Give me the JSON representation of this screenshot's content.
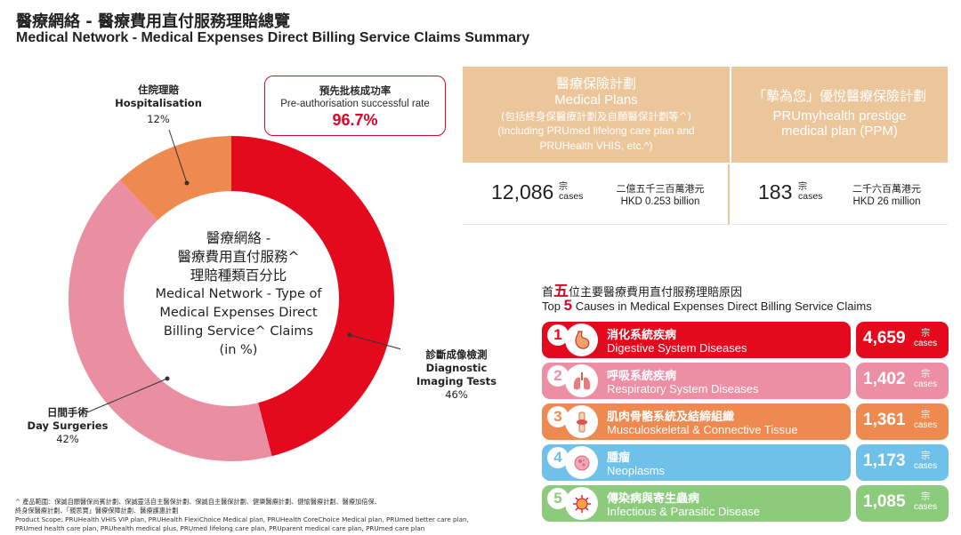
{
  "header": {
    "title_zh": "醫療網絡 - 醫療費用直付服務理賠總覽",
    "title_en": "Medical Network - Medical Expenses Direct Billing Service Claims Summary"
  },
  "chart_data": {
    "type": "pie",
    "donut": true,
    "title": "醫療網絡 - 醫療費用直付服務^ 理賠種類百分比 Medical Network - Type of Medical Expenses Direct Billing Service^ Claims (in %)",
    "title_lines": [
      "醫療網絡 -",
      "醫療費用直付服務^",
      "理賠種類百分比",
      "Medical Network - Type of",
      "Medical Expenses Direct",
      "Billing Service^ Claims",
      "(in %)"
    ],
    "slices": [
      {
        "label_zh": "診斷成像檢測",
        "label_en": "Diagnostic Imaging Tests",
        "label_en_lines": [
          "Diagnostic",
          "Imaging Tests"
        ],
        "value": 46,
        "value_label": "46%",
        "color": "#e5091e"
      },
      {
        "label_zh": "日間手術",
        "label_en": "Day Surgeries",
        "value": 42,
        "value_label": "42%",
        "color": "#ea8ea2"
      },
      {
        "label_zh": "住院理賠",
        "label_en": "Hospitalisation",
        "value": 12,
        "value_label": "12%",
        "color": "#ee8a4f"
      }
    ]
  },
  "preauth": {
    "label_zh": "預先批核成功率",
    "label_en": "Pre-authorisation successful rate",
    "value": "96.7%"
  },
  "plans": [
    {
      "name_zh": "醫療保險計劃",
      "name_en": "Medical Plans",
      "note_zh": "(包括終身保醫療計劃及自願醫保計劃等^)",
      "note_en_lines": [
        "(Including PRUmed lifelong care plan and",
        "PRUHealth VHIS, etc.^)"
      ],
      "cases": "12,086",
      "cases_unit_zh": "宗",
      "cases_unit_en": "cases",
      "amount_zh": "二億五千三百萬港元",
      "amount_en": "HKD 0.253 billion"
    },
    {
      "name_zh": "「摯為您」優悅醫療保險計劃",
      "name_en_lines": [
        "PRUmyhealth prestige",
        "medical plan (PPM)"
      ],
      "cases": "183",
      "cases_unit_zh": "宗",
      "cases_unit_en": "cases",
      "amount_zh": "二千六百萬港元",
      "amount_en": "HKD 26 million"
    }
  ],
  "causes": {
    "title_zh_pre": "首",
    "title_zh_num": "五",
    "title_zh_post": "位主要醫療費用直付服務理賠原因",
    "title_en_pre": "Top",
    "title_en_num": "5",
    "title_en_post": "Causes in Medical Expenses Direct Billing Service Claims",
    "items": [
      {
        "rank": "1",
        "name_zh": "消化系統疾病",
        "name_en": "Digestive System Diseases",
        "cases": "4,659",
        "unit_zh": "宗",
        "unit_en": "cases",
        "color": "#e5091e",
        "val_color": "#e5091e",
        "icon": "stomach-icon"
      },
      {
        "rank": "2",
        "name_zh": "呼吸系統疾病",
        "name_en": "Respiratory System Diseases",
        "cases": "1,402",
        "unit_zh": "宗",
        "unit_en": "cases",
        "color": "#ec8fa5",
        "val_color": "#ec8fa5",
        "icon": "lungs-icon"
      },
      {
        "rank": "3",
        "name_zh": "肌肉骨骼系統及結締組織",
        "name_en": "Musculoskeletal & Connective Tissue",
        "cases": "1,361",
        "unit_zh": "宗",
        "unit_en": "cases",
        "color": "#ee8a4f",
        "val_color": "#ee8a4f",
        "icon": "knee-joint-icon"
      },
      {
        "rank": "4",
        "name_zh": "腫瘤",
        "name_en": "Neoplasms",
        "cases": "1,173",
        "unit_zh": "宗",
        "unit_en": "cases",
        "color": "#6fc1ea",
        "val_color": "#6fc1ea",
        "icon": "cell-icon"
      },
      {
        "rank": "5",
        "name_zh": "傳染病與寄生蟲病",
        "name_en": "Infectious & Parasitic Disease",
        "cases": "1,085",
        "unit_zh": "宗",
        "unit_en": "cases",
        "color": "#8ccb7b",
        "val_color": "#8ccb7b",
        "icon": "virus-icon"
      }
    ]
  },
  "footnote": {
    "lines": [
      "^ 產品範圍：保誠自願醫保尚賓計劃、保誠靈活自主醫保計劃、保誠自主醫保計劃、健樂醫療計劃、健愉醫療計劃、醫療加倍保、",
      "   終身保醫療計劃、「親思寶」醫療保障計劃、醫療護惠計劃",
      "   Product Scope: PRUHealth VHIS VIP plan, PRUHealth FlexiChoice Medical plan, PRUHealth CoreChoice Medical plan, PRUmed better care plan,",
      "   PRUmed health care plan, PRUhealth medical plus, PRUmed lifelong care plan, PRUparent medical care plan, PRUmed care plan"
    ]
  }
}
